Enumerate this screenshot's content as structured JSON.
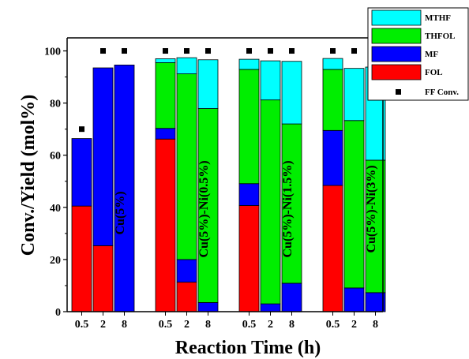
{
  "chart_data": {
    "type": "bar",
    "stacked": true,
    "xlabel": "Reaction Time (h)",
    "ylabel": "Conv./Yield (mol%)",
    "ylim": [
      0,
      105
    ],
    "yticks": [
      "0",
      "20",
      "40",
      "60",
      "80",
      "100"
    ],
    "legend_position": "top-right",
    "colors": {
      "FOL": "#ff0000",
      "MF": "#0000ff",
      "THFOL": "#00ee00",
      "MTHF": "#00ffff",
      "FF Conv.": "#000000"
    },
    "legend": [
      {
        "name": "MTHF",
        "kind": "box"
      },
      {
        "name": "THFOL",
        "kind": "box"
      },
      {
        "name": "MF",
        "kind": "box"
      },
      {
        "name": "FOL",
        "kind": "box"
      },
      {
        "name": "FF Conv.",
        "kind": "marker"
      }
    ],
    "groups": [
      {
        "label": "Cu(5%)",
        "categories": [
          "0.5",
          "2",
          "8"
        ],
        "FOL": [
          40.5,
          25.3,
          0
        ],
        "MF": [
          25.9,
          68.2,
          94.6
        ],
        "THFOL": [
          0,
          0,
          0
        ],
        "MTHF": [
          0,
          0,
          0
        ],
        "FF_conv": [
          70,
          100,
          100
        ]
      },
      {
        "label": "Cu(5%)-Ni(0.5%)",
        "categories": [
          "0.5",
          "2",
          "8"
        ],
        "FOL": [
          66.2,
          11.3,
          0
        ],
        "MF": [
          4.1,
          8.7,
          3.5
        ],
        "THFOL": [
          25.2,
          71.2,
          74.4
        ],
        "MTHF": [
          1.5,
          6.2,
          18.7
        ],
        "FF_conv": [
          100,
          100,
          100
        ]
      },
      {
        "label": "Cu(5%)-Ni(1.5%)",
        "categories": [
          "0.5",
          "2",
          "8"
        ],
        "FOL": [
          40.7,
          0,
          0
        ],
        "MF": [
          8.4,
          3.0,
          10.9
        ],
        "THFOL": [
          43.8,
          78.2,
          61.1
        ],
        "MTHF": [
          3.9,
          15.0,
          24.0
        ],
        "FF_conv": [
          100,
          100,
          100
        ]
      },
      {
        "label": "Cu(5%)-Ni(3%)",
        "categories": [
          "0.5",
          "2",
          "8"
        ],
        "FOL": [
          48.4,
          0,
          0
        ],
        "MF": [
          21.1,
          9.1,
          7.3
        ],
        "THFOL": [
          23.4,
          64.2,
          50.8
        ],
        "MTHF": [
          4.2,
          20.0,
          35.7
        ],
        "FF_conv": [
          100,
          100,
          100
        ]
      }
    ]
  }
}
